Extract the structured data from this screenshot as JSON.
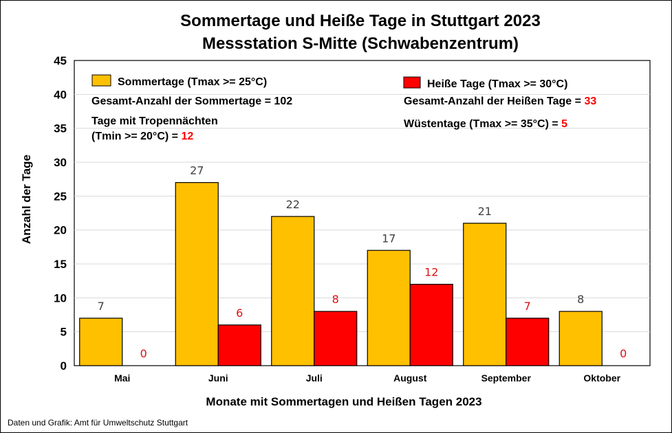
{
  "colors": {
    "sommertage": "#FFC000",
    "heisse_tage": "#FF0000",
    "label_sommertage": "#404040",
    "label_heisse_tage": "#E01010",
    "grid": "#D9D9D9"
  },
  "chart_data": {
    "type": "bar",
    "title": "Sommertage und Heiße Tage in Stuttgart 2023",
    "subtitle": "Messstation S-Mitte (Schwabenzentrum)",
    "xlabel": "Monate mit Sommertagen und Heißen Tagen 2023",
    "ylabel": "Anzahl der Tage",
    "ylim": [
      0,
      45
    ],
    "yticks": [
      0,
      5,
      10,
      15,
      20,
      25,
      30,
      35,
      40,
      45
    ],
    "grid": true,
    "categories": [
      "Mai",
      "Juni",
      "Juli",
      "August",
      "September",
      "Oktober"
    ],
    "series": [
      {
        "name": "Sommertage (Tmax >= 25°C)",
        "values": [
          7,
          27,
          22,
          17,
          21,
          8
        ]
      },
      {
        "name": "Heiße Tage (Tmax >= 30°C)",
        "values": [
          0,
          6,
          8,
          12,
          7,
          0
        ]
      }
    ]
  },
  "annotations": {
    "sommertage_total_label": "Gesamt-Anzahl der Sommertage = 102",
    "tropennaechte_line1": "Tage mit Tropennächten",
    "tropennaechte_line2": "(Tmin >= 20°C) = ",
    "tropennaechte_value": "12",
    "heisse_total_label": "Gesamt-Anzahl der Heißen Tage = ",
    "heisse_total_value": "33",
    "wuestentage_label": "Wüstentage (Tmax >= 35°C) = ",
    "wuestentage_value": "5"
  },
  "source": "Daten und Grafik: Amt für Umweltschutz Stuttgart"
}
